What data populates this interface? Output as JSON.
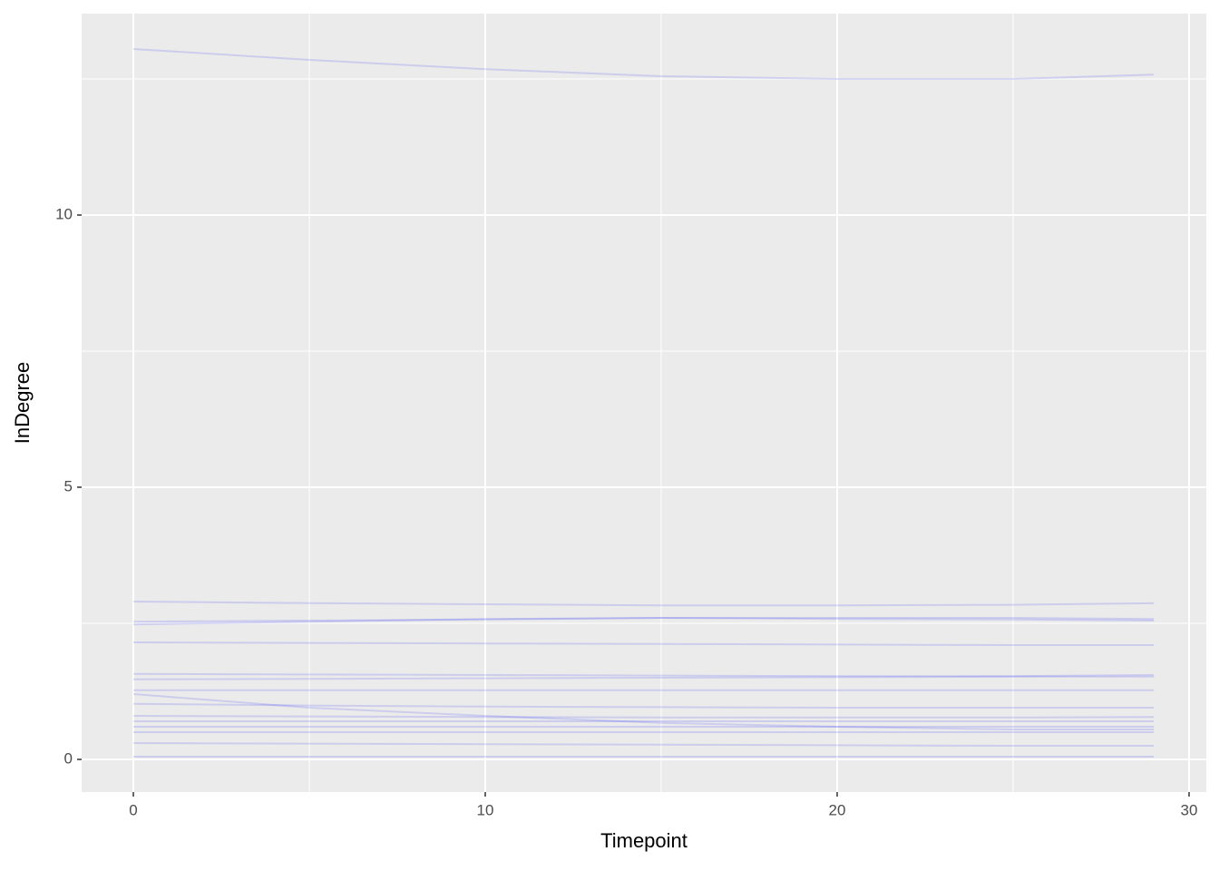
{
  "chart_data": {
    "type": "line",
    "x_label": "Timepoint",
    "y_label": "InDegree",
    "x": [
      0,
      5,
      10,
      15,
      20,
      25,
      29
    ],
    "xlim": [
      -1.47,
      30.49
    ],
    "ylim": [
      -0.6,
      13.7
    ],
    "xticks": [
      0,
      10,
      20,
      30
    ],
    "yticks": [
      0,
      5,
      10
    ],
    "x_minor_ticks": [
      5,
      15,
      25
    ],
    "y_minor_ticks": [
      2.5,
      7.5,
      12.5
    ],
    "grid": true,
    "line_color": "#0000ff",
    "line_opacity": 0.13,
    "series": [
      {
        "values": [
          13.05,
          12.85,
          12.68,
          12.55,
          12.5,
          12.5,
          12.58
        ]
      },
      {
        "values": [
          2.9,
          2.87,
          2.85,
          2.83,
          2.83,
          2.84,
          2.87
        ]
      },
      {
        "values": [
          2.53,
          2.55,
          2.57,
          2.6,
          2.6,
          2.6,
          2.58
        ]
      },
      {
        "values": [
          2.48,
          2.53,
          2.58,
          2.6,
          2.58,
          2.57,
          2.55
        ]
      },
      {
        "values": [
          2.15,
          2.14,
          2.13,
          2.12,
          2.11,
          2.1,
          2.1
        ]
      },
      {
        "values": [
          1.57,
          1.56,
          1.55,
          1.54,
          1.53,
          1.53,
          1.55
        ]
      },
      {
        "values": [
          1.47,
          1.48,
          1.49,
          1.5,
          1.51,
          1.52,
          1.52
        ]
      },
      {
        "values": [
          1.27,
          1.27,
          1.27,
          1.27,
          1.27,
          1.27,
          1.27
        ]
      },
      {
        "values": [
          1.2,
          0.95,
          0.8,
          0.67,
          0.6,
          0.55,
          0.55
        ]
      },
      {
        "values": [
          1.02,
          0.99,
          0.97,
          0.96,
          0.95,
          0.95,
          0.95
        ]
      },
      {
        "values": [
          0.8,
          0.79,
          0.78,
          0.77,
          0.77,
          0.77,
          0.78
        ]
      },
      {
        "values": [
          0.7,
          0.7,
          0.7,
          0.7,
          0.7,
          0.7,
          0.7
        ]
      },
      {
        "values": [
          0.6,
          0.6,
          0.6,
          0.6,
          0.6,
          0.6,
          0.6
        ]
      },
      {
        "values": [
          0.5,
          0.5,
          0.5,
          0.5,
          0.5,
          0.5,
          0.5
        ]
      },
      {
        "values": [
          0.3,
          0.29,
          0.28,
          0.27,
          0.26,
          0.25,
          0.25
        ]
      },
      {
        "values": [
          0.05,
          0.05,
          0.05,
          0.05,
          0.05,
          0.05,
          0.05
        ]
      }
    ]
  }
}
